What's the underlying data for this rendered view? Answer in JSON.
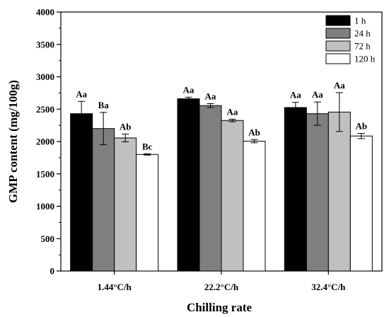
{
  "chart_data": {
    "type": "bar",
    "xlabel": "Chilling rate",
    "ylabel": "GMP content (mg/100g)",
    "ylim": [
      0,
      4000
    ],
    "yticks": [
      0,
      500,
      1000,
      1500,
      2000,
      2500,
      3000,
      3500,
      4000
    ],
    "categories": [
      "1.44°C/h",
      "22.2°C/h",
      "32.4°C/h"
    ],
    "legend_position": "top-right",
    "grid": false,
    "series": [
      {
        "name": "1 h",
        "color": "#000000",
        "values": [
          2430,
          2660,
          2525
        ],
        "errors": [
          190,
          25,
          80
        ],
        "labels": [
          "Aa",
          "Aa",
          "Aa"
        ]
      },
      {
        "name": "24 h",
        "color": "#7f7f7f",
        "values": [
          2200,
          2555,
          2430
        ],
        "errors": [
          250,
          30,
          180
        ],
        "labels": [
          "Ba",
          "Aa",
          "Aa"
        ]
      },
      {
        "name": "72 h",
        "color": "#c0c0c0",
        "values": [
          2055,
          2325,
          2455
        ],
        "errors": [
          60,
          20,
          300
        ],
        "labels": [
          "Ab",
          "Aa",
          "Aa"
        ]
      },
      {
        "name": "120 h",
        "color": "#ffffff",
        "values": [
          1800,
          2005,
          2085
        ],
        "errors": [
          10,
          25,
          40
        ],
        "labels": [
          "Bc",
          "Ab",
          "Ab"
        ]
      }
    ]
  }
}
